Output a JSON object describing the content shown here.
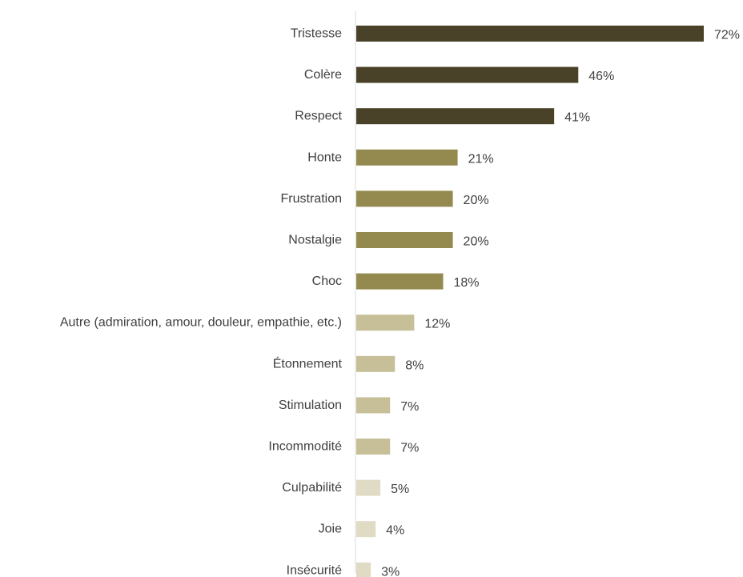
{
  "chart_data": {
    "type": "bar",
    "orientation": "horizontal",
    "categories": [
      "Tristesse",
      "Colère",
      "Respect",
      "Honte",
      "Frustration",
      "Nostalgie",
      "Choc",
      "Autre (admiration, amour, douleur, empathie, etc.)",
      "Étonnement",
      "Stimulation",
      "Incommodité",
      "Culpabilité",
      "Joie",
      "Insécurité"
    ],
    "values": [
      72,
      46,
      41,
      21,
      20,
      20,
      18,
      12,
      8,
      7,
      7,
      5,
      4,
      3
    ],
    "value_labels": [
      "72%",
      "46%",
      "41%",
      "21%",
      "20%",
      "20%",
      "18%",
      "12%",
      "8%",
      "7%",
      "7%",
      "5%",
      "4%",
      "3%"
    ],
    "bar_colors": [
      "#4a4228",
      "#4a4228",
      "#4a4228",
      "#948a50",
      "#948a50",
      "#948a50",
      "#948a50",
      "#c7bf98",
      "#c7bf98",
      "#c7bf98",
      "#c7bf98",
      "#e0dbc4",
      "#e0dbc4",
      "#e0dbc4"
    ],
    "axis_color": "#d9d9d9",
    "text_color": "#404040",
    "xlim": [
      0,
      72
    ],
    "grid": false,
    "legend": false
  }
}
